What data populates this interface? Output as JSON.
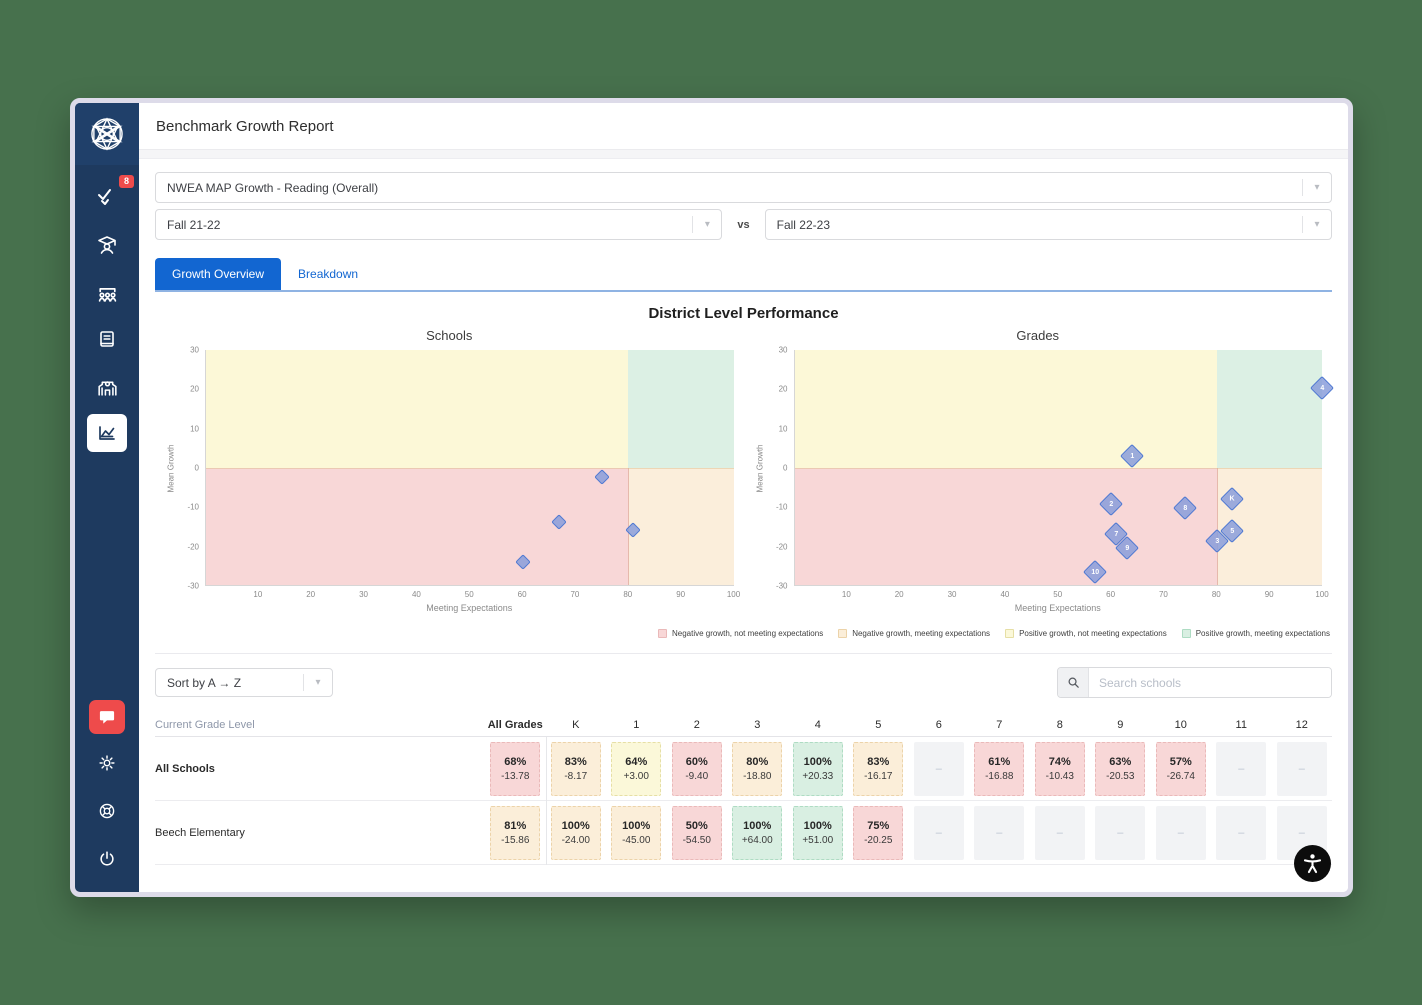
{
  "window": {
    "title": "Benchmark Growth Report"
  },
  "sidebar": {
    "badge_count": "8",
    "items": [
      {
        "icon": "logo-icon"
      },
      {
        "icon": "assessments-check-icon"
      },
      {
        "icon": "student-icon"
      },
      {
        "icon": "class-roster-icon"
      },
      {
        "icon": "gradebook-icon"
      },
      {
        "icon": "school-building-icon"
      },
      {
        "icon": "reports-chart-icon",
        "active": true
      },
      {
        "icon": "feedback-chat-icon"
      },
      {
        "icon": "settings-gear-icon"
      },
      {
        "icon": "help-lifering-icon"
      },
      {
        "icon": "logout-power-icon"
      }
    ]
  },
  "filters": {
    "assessment": "NWEA MAP Growth - Reading (Overall)",
    "term_a": "Fall 21-22",
    "vs_label": "vs",
    "term_b": "Fall 22-23"
  },
  "tabs": [
    {
      "label": "Growth Overview",
      "active": true
    },
    {
      "label": "Breakdown",
      "active": false
    }
  ],
  "section_title": "District Level Performance",
  "chart_data": [
    {
      "type": "scatter",
      "title": "Schools",
      "xlabel": "Meeting Expectations",
      "ylabel": "Mean Growth",
      "xlim": [
        0,
        100
      ],
      "ylim": [
        -30,
        30
      ],
      "x_ticks": [
        10,
        20,
        30,
        40,
        50,
        60,
        70,
        80,
        90,
        100
      ],
      "y_ticks": [
        30,
        20,
        10,
        0,
        -10,
        -20,
        -30
      ],
      "quadrant_split": {
        "x": 80,
        "y": 0
      },
      "grid": false,
      "points": [
        {
          "x": 75,
          "y": -2.3
        },
        {
          "x": 67,
          "y": -13.9
        },
        {
          "x": 81,
          "y": -15.9
        },
        {
          "x": 60,
          "y": -24.2
        }
      ]
    },
    {
      "type": "scatter",
      "title": "Grades",
      "xlabel": "Meeting Expectations",
      "ylabel": "Mean Growth",
      "xlim": [
        0,
        100
      ],
      "ylim": [
        -30,
        30
      ],
      "x_ticks": [
        10,
        20,
        30,
        40,
        50,
        60,
        70,
        80,
        90,
        100
      ],
      "y_ticks": [
        30,
        20,
        10,
        0,
        -10,
        -20,
        -30
      ],
      "quadrant_split": {
        "x": 80,
        "y": 0
      },
      "grid": false,
      "points": [
        {
          "label": "4",
          "x": 100,
          "y": 20.33
        },
        {
          "label": "1",
          "x": 64,
          "y": 3.0
        },
        {
          "label": "K",
          "x": 83,
          "y": -8.17
        },
        {
          "label": "2",
          "x": 60,
          "y": -9.4
        },
        {
          "label": "8",
          "x": 74,
          "y": -10.43
        },
        {
          "label": "5",
          "x": 83,
          "y": -16.17
        },
        {
          "label": "7",
          "x": 61,
          "y": -16.88
        },
        {
          "label": "3",
          "x": 80,
          "y": -18.8
        },
        {
          "label": "9",
          "x": 63,
          "y": -20.53
        },
        {
          "label": "10",
          "x": 57,
          "y": -26.74
        }
      ]
    }
  ],
  "legend": [
    {
      "label": "Negative growth, not meeting expectations",
      "color": "#f8d7d7",
      "border": "#eab9b9"
    },
    {
      "label": "Negative growth, meeting expectations",
      "color": "#fbeed9",
      "border": "#ecd3a9"
    },
    {
      "label": "Positive growth, not meeting expectations",
      "color": "#fbf8d9",
      "border": "#e6dfa5"
    },
    {
      "label": "Positive growth, meeting expectations",
      "color": "#d9efe2",
      "border": "#aedcc3"
    }
  ],
  "toolbar": {
    "sort_label": "Sort by A → Z",
    "search_placeholder": "Search schools"
  },
  "table": {
    "row_header_label": "Current Grade Level",
    "empty_placeholder": "–",
    "columns": [
      "All Grades",
      "K",
      "1",
      "2",
      "3",
      "4",
      "5",
      "6",
      "7",
      "8",
      "9",
      "10",
      "11",
      "12"
    ],
    "rows": [
      {
        "name": "All Schools",
        "bold": true,
        "cells": [
          {
            "pct": "68%",
            "delta": "-13.78",
            "tone": "neg-not"
          },
          {
            "pct": "83%",
            "delta": "-8.17",
            "tone": "neg-meet"
          },
          {
            "pct": "64%",
            "delta": "+3.00",
            "tone": "pos-not"
          },
          {
            "pct": "60%",
            "delta": "-9.40",
            "tone": "neg-not"
          },
          {
            "pct": "80%",
            "delta": "-18.80",
            "tone": "neg-meet"
          },
          {
            "pct": "100%",
            "delta": "+20.33",
            "tone": "pos-meet"
          },
          {
            "pct": "83%",
            "delta": "-16.17",
            "tone": "neg-meet"
          },
          {
            "tone": "empty"
          },
          {
            "pct": "61%",
            "delta": "-16.88",
            "tone": "neg-not"
          },
          {
            "pct": "74%",
            "delta": "-10.43",
            "tone": "neg-not"
          },
          {
            "pct": "63%",
            "delta": "-20.53",
            "tone": "neg-not"
          },
          {
            "pct": "57%",
            "delta": "-26.74",
            "tone": "neg-not"
          },
          {
            "tone": "empty"
          },
          {
            "tone": "empty"
          }
        ]
      },
      {
        "name": "Beech Elementary",
        "bold": false,
        "cells": [
          {
            "pct": "81%",
            "delta": "-15.86",
            "tone": "neg-meet"
          },
          {
            "pct": "100%",
            "delta": "-24.00",
            "tone": "neg-meet"
          },
          {
            "pct": "100%",
            "delta": "-45.00",
            "tone": "neg-meet"
          },
          {
            "pct": "50%",
            "delta": "-54.50",
            "tone": "neg-not"
          },
          {
            "pct": "100%",
            "delta": "+64.00",
            "tone": "pos-meet"
          },
          {
            "pct": "100%",
            "delta": "+51.00",
            "tone": "pos-meet"
          },
          {
            "pct": "75%",
            "delta": "-20.25",
            "tone": "neg-not"
          },
          {
            "tone": "empty"
          },
          {
            "tone": "empty"
          },
          {
            "tone": "empty"
          },
          {
            "tone": "empty"
          },
          {
            "tone": "empty"
          },
          {
            "tone": "empty"
          },
          {
            "tone": "empty"
          }
        ]
      }
    ]
  },
  "colors": {
    "accent_blue": "#1266d1",
    "sidebar_navy": "#1e3a5f",
    "alert_red": "#ee4b4b",
    "quad_yellow": "#fcf8d7",
    "quad_green": "#dcf0e4",
    "quad_pink": "#f8d7d7",
    "quad_cream": "#fbeedb",
    "marker_fill": "#899ddb",
    "marker_border": "#4f79d2",
    "background_green": "#47714d"
  }
}
